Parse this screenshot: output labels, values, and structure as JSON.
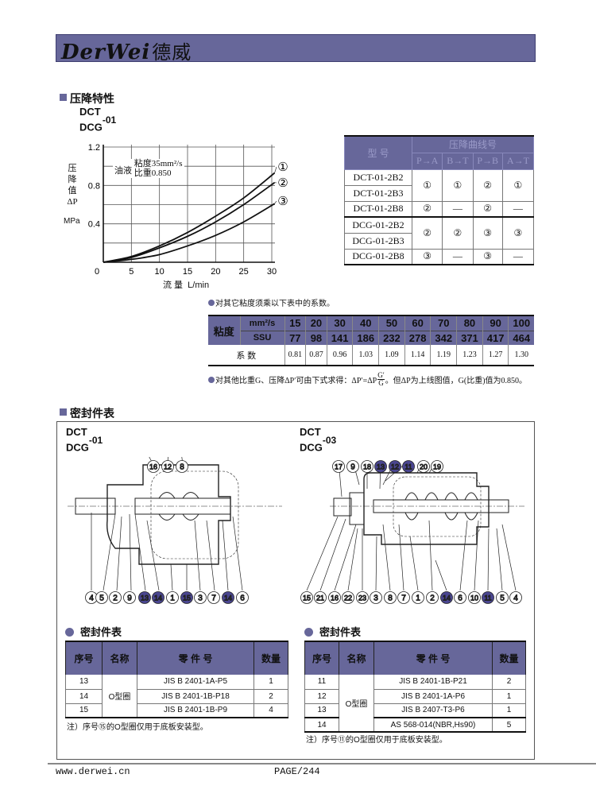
{
  "header": {
    "logo_latin": "DerWei",
    "logo_cn": "德威",
    "bar_color": "#67679a"
  },
  "section1": {
    "title": "压降特性",
    "model_top": "DCT",
    "model_bottom": "DCG",
    "model_suffix": "-01"
  },
  "chart_data": {
    "type": "line",
    "xlabel": "流 量  L/min",
    "ylabel_lines": [
      "压",
      "降",
      "值",
      "ΔP"
    ],
    "yunit": "MPa",
    "xlim": [
      0,
      30
    ],
    "ylim": [
      0,
      1.2
    ],
    "xticks": [
      "0",
      "5",
      "10",
      "15",
      "20",
      "25",
      "30"
    ],
    "yticks": [
      "0.4",
      "0.8",
      "1.2"
    ],
    "grid": true,
    "annotation": {
      "label": "油液",
      "line1": "粘度35mm²/s",
      "line2": "比重0.850"
    },
    "x": [
      0,
      5,
      10,
      15,
      20,
      25,
      30.5
    ],
    "series": [
      {
        "name": "①",
        "values": [
          0,
          0.06,
          0.17,
          0.31,
          0.48,
          0.67,
          0.93
        ]
      },
      {
        "name": "②",
        "values": [
          0,
          0.05,
          0.15,
          0.27,
          0.42,
          0.6,
          0.83
        ]
      },
      {
        "name": "③",
        "values": [
          0,
          0.03,
          0.08,
          0.17,
          0.28,
          0.42,
          0.61
        ]
      }
    ]
  },
  "curve_table": {
    "col_model": "型 号",
    "col_group": "压降曲线号",
    "directions": [
      "P→A",
      "B→T",
      "P→B",
      "A→T"
    ],
    "rows": [
      {
        "model": "DCT-01-2B2",
        "values": [
          "①",
          "①",
          "②",
          "①"
        ]
      },
      {
        "model": "DCT-01-2B3"
      },
      {
        "model": "DCT-01-2B8",
        "values": [
          "②",
          "—",
          "②",
          "—"
        ]
      },
      {
        "model": "DCG-01-2B2",
        "values": [
          "②",
          "②",
          "③",
          "③"
        ]
      },
      {
        "model": "DCG-01-2B3"
      },
      {
        "model": "DCG-01-2B8",
        "values": [
          "③",
          "—",
          "③",
          "—"
        ]
      }
    ]
  },
  "note1": "对其它粘度须乘以下表中的系数。",
  "viscosity_table": {
    "label": "粘度",
    "unit1": "mm²/s",
    "unit2": "SSU",
    "coef_label": "系 数",
    "mm2s": [
      "15",
      "20",
      "30",
      "40",
      "50",
      "60",
      "70",
      "80",
      "90",
      "100"
    ],
    "ssu": [
      "77",
      "98",
      "141",
      "186",
      "232",
      "278",
      "342",
      "371",
      "417",
      "464"
    ],
    "coef": [
      "0.81",
      "0.87",
      "0.96",
      "1.03",
      "1.09",
      "1.14",
      "1.19",
      "1.23",
      "1.27",
      "1.30"
    ]
  },
  "note2": {
    "prefix": "对其他比重G、压降ΔP′可由下式求得：ΔP′=ΔP",
    "num": "G′",
    "den": "G",
    "suffix": "。但ΔP为上线图值，G(比重)值为0.850。"
  },
  "section2": {
    "title": "密封件表"
  },
  "left": {
    "model_top": "DCT",
    "model_bottom": "DCG",
    "model_suffix": "-01",
    "top_callouts": [
      {
        "n": "16"
      },
      {
        "n": "12"
      },
      {
        "n": "8"
      }
    ],
    "bottom_callouts": [
      {
        "n": "4"
      },
      {
        "n": "5"
      },
      {
        "n": "2"
      },
      {
        "n": "9"
      },
      {
        "n": "13",
        "hl": true
      },
      {
        "n": "14",
        "hl": true
      },
      {
        "n": "1"
      },
      {
        "n": "15",
        "hl": true
      },
      {
        "n": "3"
      },
      {
        "n": "7"
      },
      {
        "n": "14",
        "hl": true
      },
      {
        "n": "6"
      }
    ],
    "table_title": "密封件表",
    "headers": [
      "序号",
      "名称",
      "零 件 号",
      "数量"
    ],
    "name": "O型圈",
    "rows": [
      {
        "no": "13",
        "part": "JIS B 2401-1A-P5",
        "qty": "1"
      },
      {
        "no": "14",
        "part": "JIS B 2401-1B-P18",
        "qty": "2"
      },
      {
        "no": "15",
        "part": "JIS B 2401-1B-P9",
        "qty": "4"
      }
    ],
    "note_pre": "注）序号",
    "note_ref": "⑮",
    "note_post": "的O型圈仅用于底板安装型。"
  },
  "right": {
    "model_top": "DCT",
    "model_bottom": "DCG",
    "model_suffix": "-03",
    "top_callouts": [
      {
        "n": "17"
      },
      {
        "n": "9"
      },
      {
        "n": "18"
      },
      {
        "n": "13",
        "hl": true
      },
      {
        "n": "12",
        "hl": true
      },
      {
        "n": "11",
        "hl": true
      },
      {
        "n": "20"
      },
      {
        "n": "19"
      }
    ],
    "bottom_callouts": [
      {
        "n": "15"
      },
      {
        "n": "21"
      },
      {
        "n": "16"
      },
      {
        "n": "22"
      },
      {
        "n": "23"
      },
      {
        "n": "3"
      },
      {
        "n": "8"
      },
      {
        "n": "7"
      },
      {
        "n": "1"
      },
      {
        "n": "2"
      },
      {
        "n": "14",
        "hl": true
      },
      {
        "n": "6"
      },
      {
        "n": "10"
      },
      {
        "n": "11",
        "hl": true
      },
      {
        "n": "5"
      },
      {
        "n": "4"
      }
    ],
    "table_title": "密封件表",
    "headers": [
      "序号",
      "名称",
      "零 件 号",
      "数量"
    ],
    "name": "O型圈",
    "rows": [
      {
        "no": "11",
        "part": "JIS B 2401-1B-P21",
        "qty": "2"
      },
      {
        "no": "12",
        "part": "JIS B 2401-1A-P6",
        "qty": "1"
      },
      {
        "no": "13",
        "part": "JIS B 2407-T3-P6",
        "qty": "1"
      },
      {
        "no": "14",
        "part": "AS 568-014(NBR,Hs90)",
        "qty": "5"
      }
    ],
    "note_pre": "注）序号",
    "note_ref": "⑪",
    "note_post": "的O型圈仅用于底板安装型。"
  },
  "footer": {
    "website": "www.derwei.cn",
    "page": "PAGE/244"
  }
}
